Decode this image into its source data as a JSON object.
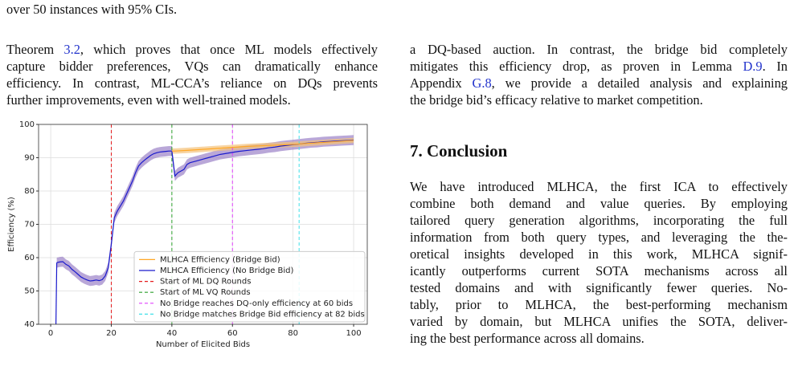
{
  "top_line": "over 50 instances with 95% CIs.",
  "left_column": {
    "paragraphs": [
      {
        "lines": [
          [
            "Theorem ",
            {
              "link": "3.2"
            },
            ", which proves that once ML models effectively"
          ],
          [
            "capture bidder preferences, VQs can dramatically enhance"
          ],
          [
            "efficiency. In contrast, ML-CCA’s reliance on DQs prevents"
          ],
          [
            "further improvements, even with well-trained models."
          ]
        ]
      }
    ]
  },
  "right_column": {
    "paragraphs": [
      {
        "lines": [
          [
            "a DQ-based auction. In contrast, the bridge bid completely"
          ],
          [
            "mitigates this efficiency drop, as proven in Lemma ",
            {
              "link": "D.9"
            },
            ". In"
          ],
          [
            "Appendix ",
            {
              "link": "G.8"
            },
            ", we provide a detailed analysis and explaining"
          ],
          [
            "the bridge bid’s efficacy relative to market competition."
          ]
        ]
      }
    ],
    "section": {
      "heading": "7. Conclusion",
      "paragraphs": [
        {
          "lines": [
            [
              "We have introduced MLHCA, the first ICA to effectively"
            ],
            [
              "combine both demand and value queries.  By employing"
            ],
            [
              "tailored query generation algorithms, incorporating the full"
            ],
            [
              "information from both query types, and leveraging the the-"
            ],
            [
              "oretical insights developed in this work, MLHCA signif-"
            ],
            [
              "icantly outperforms current SOTA mechanisms across all"
            ],
            [
              "tested domains and with significantly fewer queries.  No-"
            ],
            [
              "tably, prior to MLHCA, the best-performing mechanism"
            ],
            [
              "varied by domain, but MLHCA unifies the SOTA, deliver-"
            ],
            [
              "ing the best performance across all domains."
            ]
          ]
        }
      ]
    }
  },
  "chart_data": {
    "type": "line",
    "x_label": "Number of Elicited Bids",
    "y_label": "Efficiency (%)",
    "xlim": [
      -4,
      104.5
    ],
    "ylim": [
      40,
      100
    ],
    "xticks": [
      0,
      20,
      40,
      60,
      80,
      100
    ],
    "yticks": [
      40,
      50,
      60,
      70,
      80,
      90,
      100
    ],
    "grid": true,
    "legend": "lower right",
    "series": [
      {
        "name": "MLHCA Efficiency (Bridge Bid)",
        "color": "#ffa726",
        "ci": 0.8,
        "x": [
          40,
          41,
          45,
          50,
          55,
          60,
          65,
          70,
          75,
          80,
          85,
          90,
          95,
          100
        ],
        "values": [
          92,
          92,
          92.2,
          92.5,
          92.8,
          93.1,
          93.4,
          93.6,
          93.8,
          94,
          94.3,
          94.6,
          94.9,
          95.2
        ]
      },
      {
        "name": "MLHCA Efficiency (No Bridge Bid)",
        "color": "#1a1acc",
        "ci": 1.5,
        "x": [
          2,
          3,
          4,
          5,
          6,
          7,
          8,
          9,
          10,
          11,
          12,
          13,
          14,
          15,
          16,
          17,
          18,
          19,
          20,
          21,
          22,
          23,
          24,
          25,
          26,
          27,
          28,
          29,
          30,
          31,
          32,
          33,
          34,
          35,
          36,
          37,
          38,
          39,
          40,
          41,
          42,
          43,
          44,
          45,
          46,
          48,
          50,
          52,
          54,
          56,
          58,
          60,
          62,
          64,
          66,
          68,
          70,
          72,
          74,
          76,
          78,
          80,
          82,
          84,
          86,
          88,
          90,
          92,
          94,
          96,
          98,
          100
        ],
        "values": [
          58.5,
          58.7,
          58.8,
          58,
          57.5,
          56.5,
          55.8,
          55,
          54.2,
          53.7,
          53.3,
          53,
          53.1,
          53.3,
          53.1,
          53.4,
          54.5,
          57,
          64,
          72,
          74,
          75.5,
          77,
          79,
          81,
          83,
          85.5,
          87.5,
          88.5,
          89.3,
          90,
          90.7,
          91.2,
          91.5,
          91.7,
          91.8,
          91.9,
          92,
          92,
          84.5,
          85.5,
          86,
          86.5,
          88,
          88.5,
          89,
          89.5,
          90,
          90.5,
          91,
          91.3,
          91.6,
          91.9,
          92.1,
          92.3,
          92.5,
          92.7,
          93,
          93.2,
          93.5,
          93.7,
          93.9,
          94.1,
          94.3,
          94.5,
          94.6,
          94.8,
          94.9,
          95,
          95.1,
          95.2,
          95.3
        ]
      }
    ],
    "vlines": [
      {
        "x": 20,
        "name": "Start of ML DQ Rounds",
        "color": "#e41a1c"
      },
      {
        "x": 40,
        "name": "Start of ML VQ Rounds",
        "color": "#2ca02c"
      },
      {
        "x": 60,
        "name": "No Bridge reaches DQ-only efficiency at 60 bids",
        "color": "#e040fb"
      },
      {
        "x": 82,
        "name": "No Bridge matches Bridge Bid efficiency at 82 bids",
        "color": "#40e0e8"
      }
    ]
  }
}
